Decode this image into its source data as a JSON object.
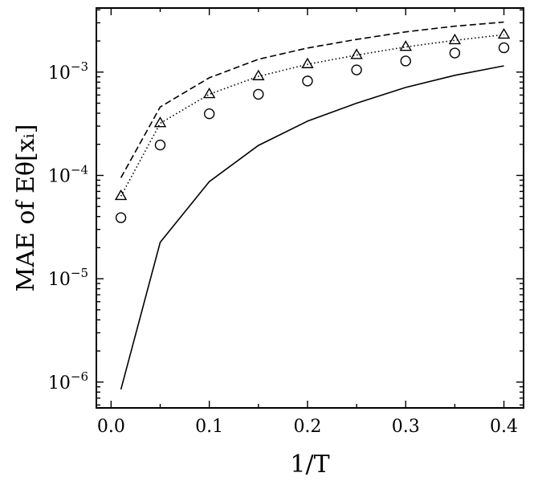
{
  "chart_data": {
    "type": "line",
    "xlabel": "1/T",
    "ylabel": "MAE of Eθ[xᵢ]",
    "xlim": [
      -0.015,
      0.42
    ],
    "ylim_log10": [
      -6.25,
      -2.38
    ],
    "y_scale": "log",
    "grid": false,
    "legend": "none",
    "x_ticks": [
      {
        "value": 0.0,
        "label": "0.0"
      },
      {
        "value": 0.1,
        "label": "0.1"
      },
      {
        "value": 0.2,
        "label": "0.2"
      },
      {
        "value": 0.3,
        "label": "0.3"
      },
      {
        "value": 0.4,
        "label": "0.4"
      }
    ],
    "y_ticks": [
      {
        "exp": -6,
        "base": "10",
        "power": "−6"
      },
      {
        "exp": -5,
        "base": "10",
        "power": "−5"
      },
      {
        "exp": -4,
        "base": "10",
        "power": "−4"
      },
      {
        "exp": -3,
        "base": "10",
        "power": "−3"
      }
    ],
    "series": [
      {
        "style": "dashed-line",
        "x": [
          0.01,
          0.05,
          0.1,
          0.15,
          0.2,
          0.25,
          0.3,
          0.35,
          0.4
        ],
        "y": [
          9.5e-05,
          0.00046,
          0.00088,
          0.00133,
          0.00171,
          0.00207,
          0.00245,
          0.00278,
          0.00305
        ]
      },
      {
        "style": "dotted-line",
        "x": [
          0.01,
          0.05,
          0.1,
          0.15,
          0.2,
          0.25,
          0.3,
          0.35,
          0.4
        ],
        "y": [
          6.3e-05,
          0.00032,
          0.00061,
          0.00091,
          0.00119,
          0.00146,
          0.00175,
          0.00203,
          0.0023
        ]
      },
      {
        "style": "triangle-markers",
        "x": [
          0.01,
          0.05,
          0.1,
          0.15,
          0.2,
          0.25,
          0.3,
          0.35,
          0.4
        ],
        "y": [
          6.3e-05,
          0.00032,
          0.00061,
          0.00091,
          0.00119,
          0.00146,
          0.00175,
          0.00203,
          0.0023
        ]
      },
      {
        "style": "circle-markers",
        "x": [
          0.01,
          0.05,
          0.1,
          0.15,
          0.2,
          0.25,
          0.3,
          0.35,
          0.4
        ],
        "y": [
          3.9e-05,
          0.000197,
          0.000395,
          0.00061,
          0.00082,
          0.00105,
          0.00128,
          0.00153,
          0.00172
        ]
      },
      {
        "style": "solid-line",
        "x": [
          0.01,
          0.05,
          0.1,
          0.15,
          0.2,
          0.25,
          0.3,
          0.35,
          0.4
        ],
        "y": [
          8.5e-07,
          2.25e-05,
          8.7e-05,
          0.000195,
          0.000335,
          0.0005,
          0.00071,
          0.00093,
          0.00115
        ]
      }
    ]
  }
}
